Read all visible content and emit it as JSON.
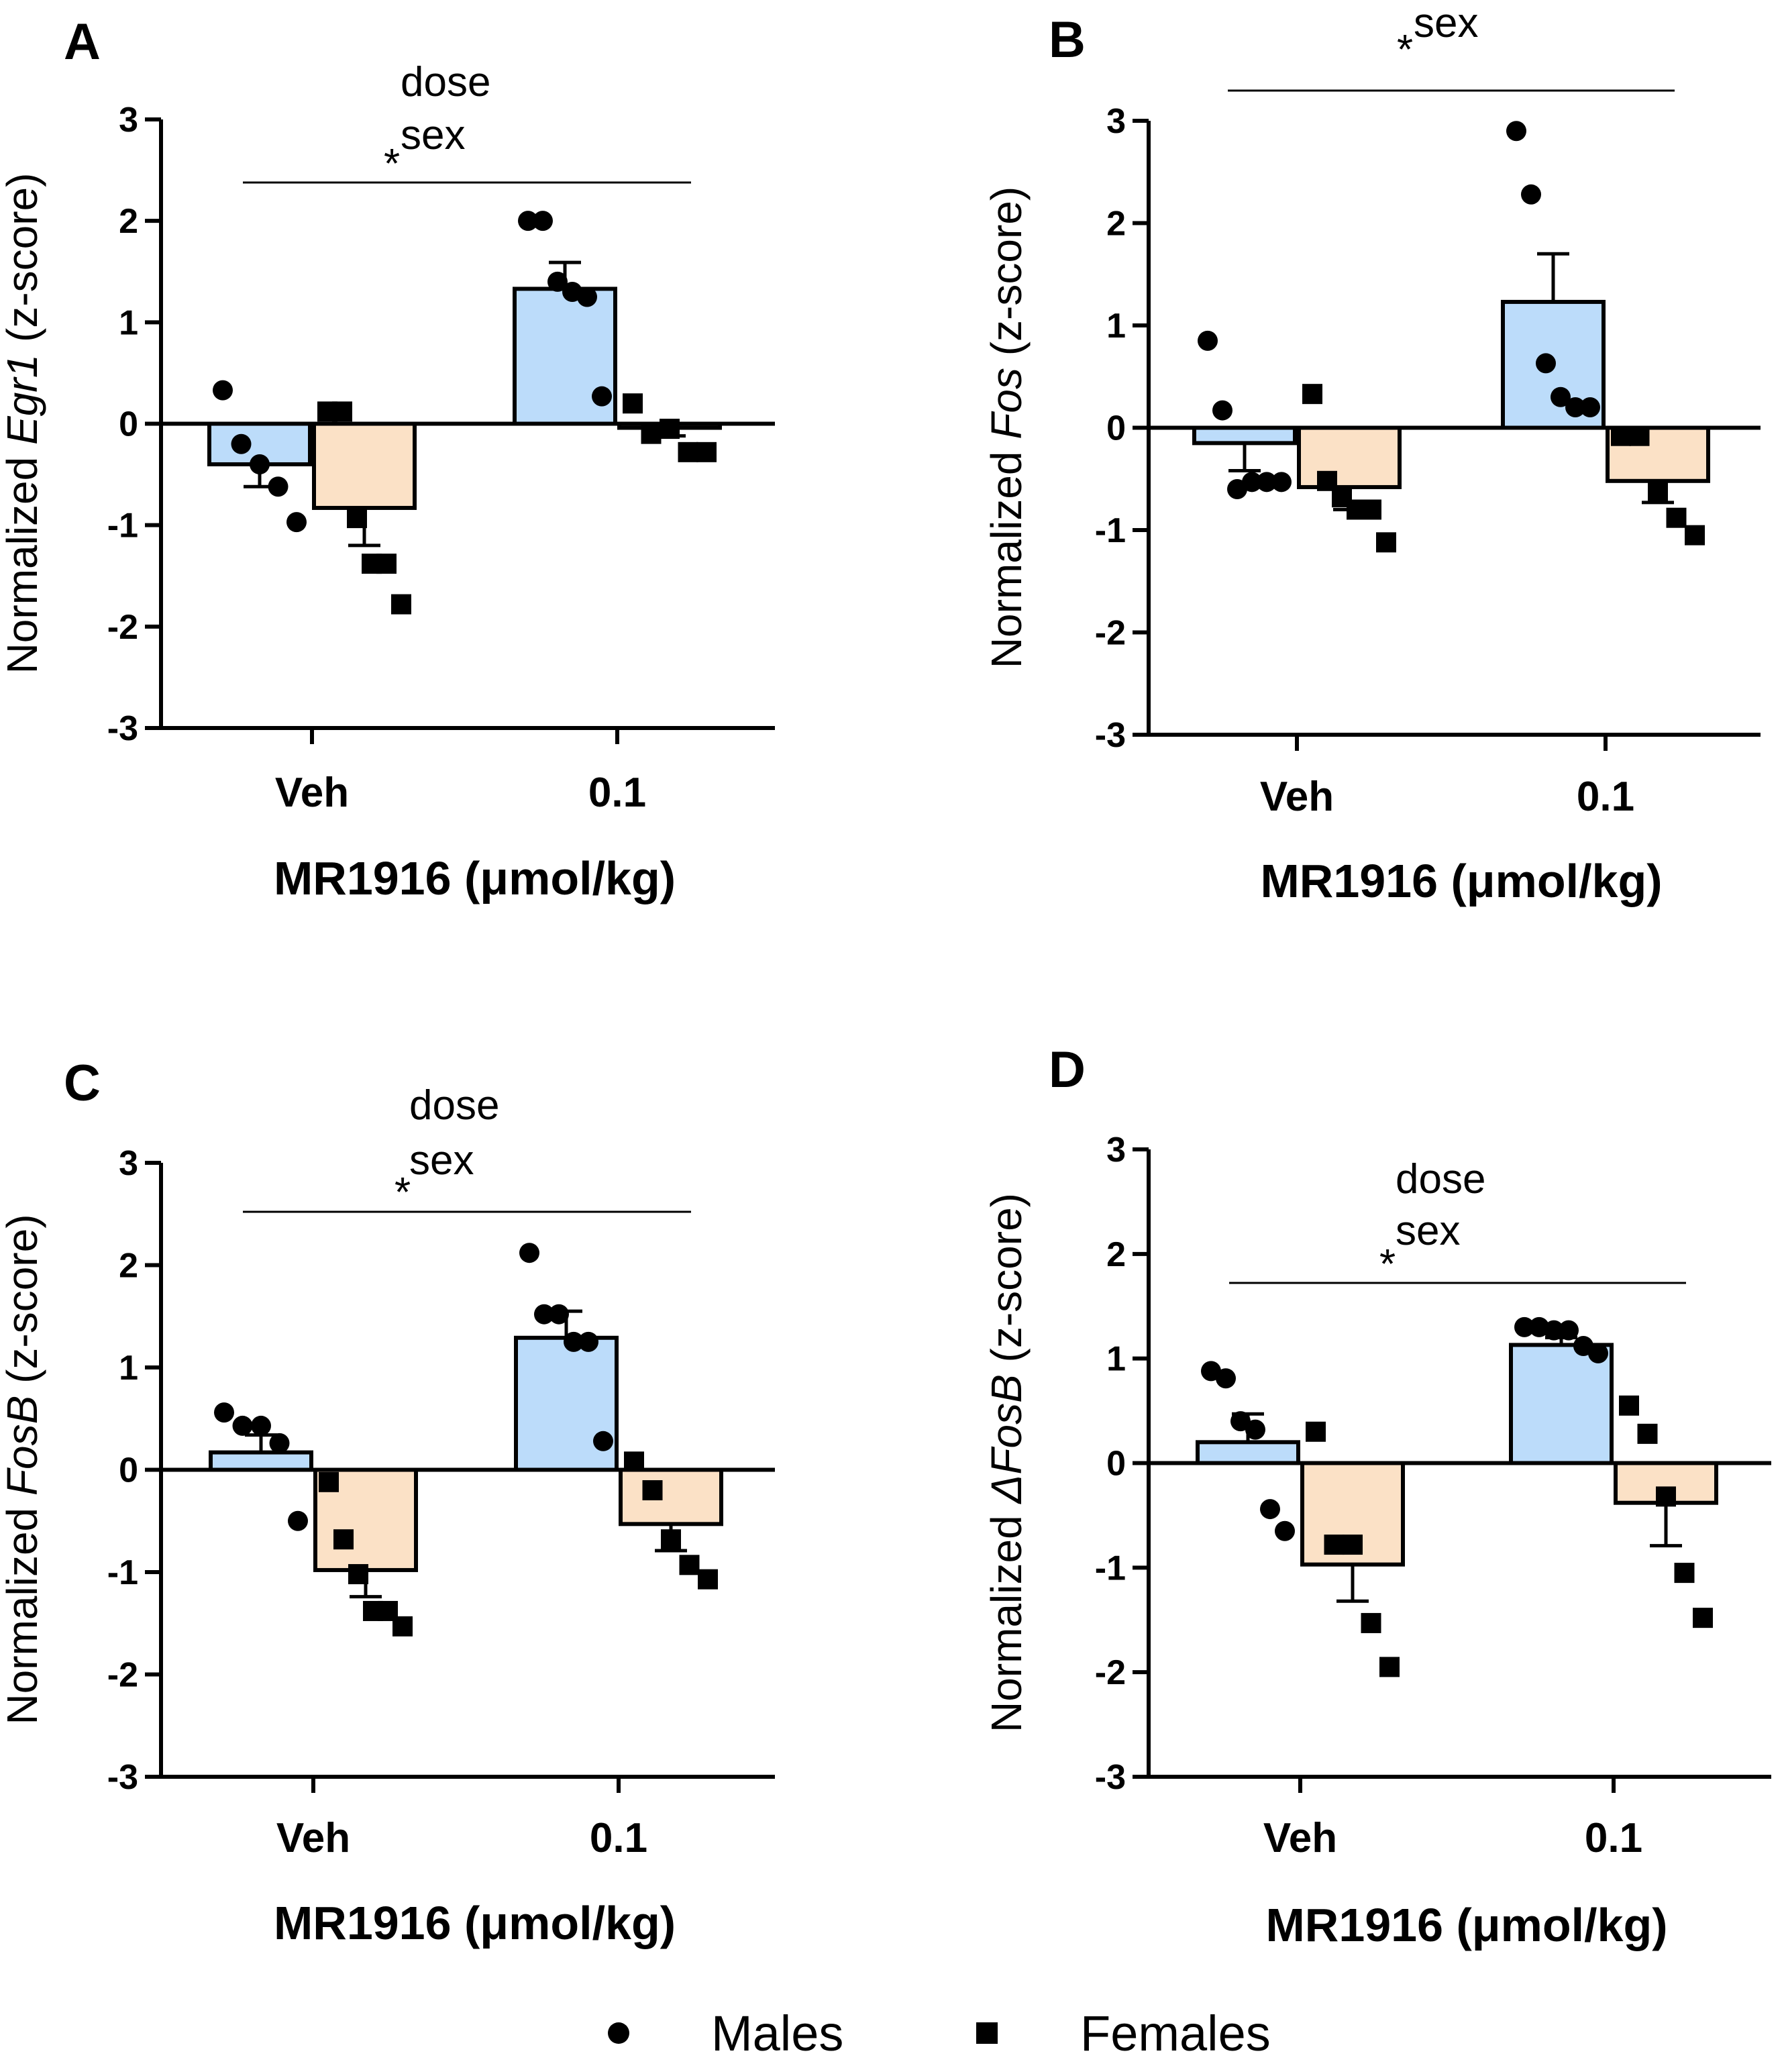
{
  "chart_data": [
    {
      "type": "bar",
      "panel_label": "A",
      "gene": "Egr1",
      "ylabel_prefix": "Normalized ",
      "ylabel_suffix": " (z-score)",
      "xlabel": "MR1916 (μmol/kg)",
      "categories": [
        "Veh",
        "0.1"
      ],
      "ylim": [
        -3,
        3
      ],
      "yticks": [
        3,
        2,
        1,
        0,
        -1,
        -2,
        -3
      ],
      "annotation": {
        "star": "*",
        "dose": "dose",
        "sex": "sex"
      },
      "series": [
        {
          "name": "Males",
          "color": "#bcdcfa",
          "values": [
            -0.4,
            1.33
          ],
          "sem": [
            0.22,
            0.26
          ],
          "points": [
            [
              0.33,
              -0.2,
              -0.4,
              -0.62,
              -0.97
            ],
            [
              2.0,
              2.0,
              1.4,
              1.3,
              1.25,
              0.27
            ]
          ]
        },
        {
          "name": "Females",
          "color": "#fbe1c6",
          "values": [
            -0.83,
            -0.04
          ],
          "sem": [
            0.37,
            0.08
          ],
          "points": [
            [
              0.12,
              0.12,
              -0.93,
              -1.38,
              -1.38,
              -1.78
            ],
            [
              0.2,
              -0.1,
              -0.05,
              -0.28,
              -0.28
            ]
          ]
        }
      ]
    },
    {
      "type": "bar",
      "panel_label": "B",
      "gene": "Fos",
      "ylabel_prefix": "Normalized ",
      "ylabel_suffix": " (z-score)",
      "xlabel": "MR1916 (μmol/kg)",
      "categories": [
        "Veh",
        "0.1"
      ],
      "ylim": [
        -3,
        3
      ],
      "yticks": [
        3,
        2,
        1,
        0,
        -1,
        -2,
        -3
      ],
      "annotation": {
        "star": "*",
        "dose": "",
        "sex": "sex"
      },
      "series": [
        {
          "name": "Males",
          "color": "#bcdcfa",
          "values": [
            -0.15,
            1.23
          ],
          "sem": [
            0.27,
            0.47
          ],
          "points": [
            [
              0.85,
              0.17,
              -0.6,
              -0.53,
              -0.53,
              -0.53
            ],
            [
              2.9,
              2.28,
              0.63,
              0.3,
              0.2,
              0.2
            ]
          ]
        },
        {
          "name": "Females",
          "color": "#fbe1c6",
          "values": [
            -0.58,
            -0.52
          ],
          "sem": [
            0.22,
            0.21
          ],
          "points": [
            [
              0.33,
              -0.52,
              -0.68,
              -0.8,
              -0.8,
              -1.12
            ],
            [
              -0.08,
              -0.08,
              -0.62,
              -0.88,
              -1.05
            ]
          ]
        }
      ]
    },
    {
      "type": "bar",
      "panel_label": "C",
      "gene": "FosB",
      "ylabel_prefix": "Normalized ",
      "ylabel_suffix": " (z-score)",
      "xlabel": "MR1916 (μmol/kg)",
      "categories": [
        "Veh",
        "0.1"
      ],
      "ylim": [
        -3,
        3
      ],
      "yticks": [
        3,
        2,
        1,
        0,
        -1,
        -2,
        -3
      ],
      "annotation": {
        "star": "*",
        "dose": "dose",
        "sex": "sex"
      },
      "series": [
        {
          "name": "Males",
          "color": "#bcdcfa",
          "values": [
            0.17,
            1.29
          ],
          "sem": [
            0.17,
            0.26
          ],
          "points": [
            [
              0.56,
              0.43,
              0.43,
              0.26,
              -0.5
            ],
            [
              2.12,
              1.52,
              1.52,
              1.25,
              1.25,
              0.28
            ]
          ]
        },
        {
          "name": "Females",
          "color": "#fbe1c6",
          "values": [
            -0.98,
            -0.53
          ],
          "sem": [
            0.26,
            0.26
          ],
          "points": [
            [
              -0.12,
              -0.68,
              -1.02,
              -1.38,
              -1.38,
              -1.53
            ],
            [
              0.08,
              -0.2,
              -0.68,
              -0.93,
              -1.07
            ]
          ]
        }
      ]
    },
    {
      "type": "bar",
      "panel_label": "D",
      "gene": "ΔFosB",
      "ylabel_prefix": "Normalized ",
      "ylabel_suffix": " (z-score)",
      "xlabel": "MR1916 (μmol/kg)",
      "categories": [
        "Veh",
        "0.1"
      ],
      "ylim": [
        -3,
        3
      ],
      "yticks": [
        3,
        2,
        1,
        0,
        -1,
        -2,
        -3
      ],
      "annotation": {
        "star": "*",
        "dose": "dose",
        "sex": "sex"
      },
      "series": [
        {
          "name": "Males",
          "color": "#bcdcfa",
          "values": [
            0.2,
            1.13
          ],
          "sem": [
            0.27,
            0.07
          ],
          "points": [
            [
              0.88,
              0.81,
              0.4,
              0.32,
              -0.44,
              -0.65
            ],
            [
              1.3,
              1.3,
              1.27,
              1.27,
              1.12,
              1.05
            ]
          ]
        },
        {
          "name": "Females",
          "color": "#fbe1c6",
          "values": [
            -0.97,
            -0.38
          ],
          "sem": [
            0.35,
            0.41
          ],
          "points": [
            [
              0.3,
              -0.78,
              -0.78,
              -1.53,
              -1.95
            ],
            [
              0.55,
              0.28,
              -0.32,
              -1.05,
              -1.48
            ]
          ]
        }
      ]
    }
  ],
  "legend": {
    "males_label": "Males",
    "females_label": "Females",
    "males_marker": "circle",
    "females_marker": "square"
  }
}
